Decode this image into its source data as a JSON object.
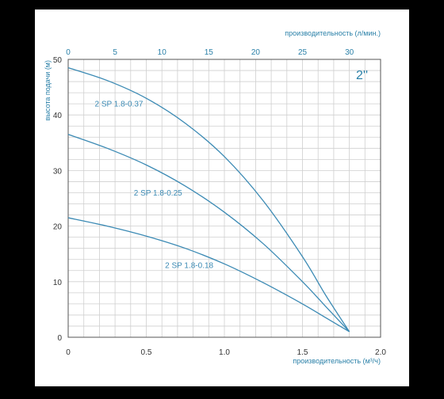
{
  "chart_data": {
    "type": "line",
    "badge": "2''",
    "xlabel": "производительность (м³/ч)",
    "x2label": "производительность (л/мин.)",
    "ylabel": "высота подачи (м)",
    "xlim": [
      0,
      2.0
    ],
    "x2lim": [
      0,
      33.33
    ],
    "ylim": [
      0,
      50
    ],
    "x_ticks": [
      "0",
      "0.5",
      "1.0",
      "1.5",
      "2.0"
    ],
    "x2_ticks": [
      "0",
      "5",
      "10",
      "15",
      "20",
      "25",
      "30"
    ],
    "y_ticks": [
      "0",
      "10",
      "20",
      "30",
      "40",
      "50"
    ],
    "grid": true,
    "series": [
      {
        "name": "2 SP 1.8-0.37",
        "color": "#3b8ab4",
        "points": [
          [
            0,
            48.5
          ],
          [
            0.25,
            46.2
          ],
          [
            0.5,
            43.0
          ],
          [
            0.75,
            38.5
          ],
          [
            1.0,
            32.5
          ],
          [
            1.25,
            24.5
          ],
          [
            1.5,
            14.5
          ],
          [
            1.65,
            7.5
          ],
          [
            1.8,
            1.0
          ]
        ]
      },
      {
        "name": "2 SP 1.8-0.25",
        "color": "#3b8ab4",
        "points": [
          [
            0,
            36.5
          ],
          [
            0.25,
            34.0
          ],
          [
            0.5,
            31.0
          ],
          [
            0.75,
            27.2
          ],
          [
            1.0,
            22.5
          ],
          [
            1.25,
            16.8
          ],
          [
            1.5,
            10.0
          ],
          [
            1.65,
            5.5
          ],
          [
            1.8,
            1.0
          ]
        ]
      },
      {
        "name": "2 SP 1.8-0.18",
        "color": "#3b8ab4",
        "points": [
          [
            0,
            21.5
          ],
          [
            0.25,
            20.0
          ],
          [
            0.5,
            18.2
          ],
          [
            0.75,
            16.0
          ],
          [
            1.0,
            13.2
          ],
          [
            1.25,
            9.8
          ],
          [
            1.5,
            6.0
          ],
          [
            1.65,
            3.5
          ],
          [
            1.8,
            1.0
          ]
        ]
      }
    ]
  }
}
